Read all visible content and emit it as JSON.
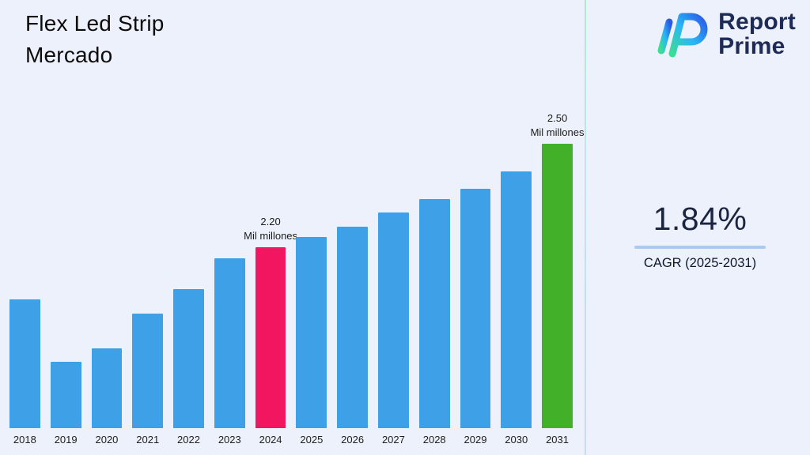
{
  "page": {
    "background": "#EDF1FB"
  },
  "header": {
    "title_line1": "Flex Led Strip",
    "title_line2": "Mercado"
  },
  "logo": {
    "icon": "report-prime-logo",
    "line1": "Report",
    "line2": "Prime",
    "brand_color": "#1F2B57",
    "gradient_start": "#3DDC97",
    "gradient_end": "#2A5AE8"
  },
  "stats": {
    "cagr_value": "1.84%",
    "cagr_label": "CAGR (2025-2031)",
    "accent_color": "#A9CBF2"
  },
  "chart_data": {
    "type": "bar",
    "title": "Flex Led Strip Mercado",
    "xlabel": "",
    "ylabel": "",
    "unit": "Mil millones",
    "categories": [
      "2018",
      "2019",
      "2020",
      "2021",
      "2022",
      "2023",
      "2024",
      "2025",
      "2026",
      "2027",
      "2028",
      "2029",
      "2030",
      "2031"
    ],
    "values": [
      2.05,
      1.87,
      1.91,
      2.01,
      2.08,
      2.17,
      2.2,
      2.23,
      2.26,
      2.3,
      2.34,
      2.37,
      2.42,
      2.5
    ],
    "ylim": [
      1.68,
      2.59
    ],
    "grid": false,
    "legend": false,
    "bar_color_default": "#3EA0E6",
    "highlight_colors": {
      "2024": "#F2155F",
      "2031": "#43B02A"
    },
    "annotations": [
      {
        "category": "2024",
        "value_label": "2.20",
        "unit_label": "Mil millones"
      },
      {
        "category": "2031",
        "value_label": "2.50",
        "unit_label": "Mil millones"
      }
    ]
  }
}
